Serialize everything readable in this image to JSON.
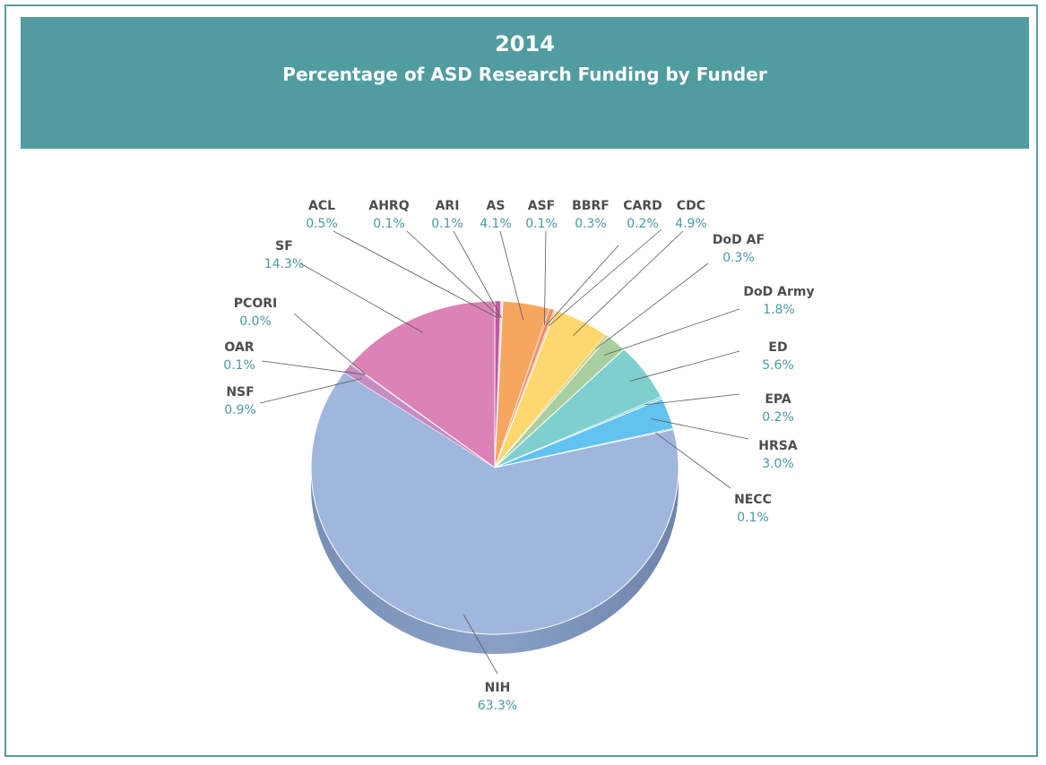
{
  "chart_data": {
    "type": "pie",
    "title": "2014",
    "subtitle": "Percentage of ASD Research Funding by Funder",
    "slices": [
      {
        "label": "ACL",
        "value_label": "0.5%",
        "value": 0.5,
        "color": "#c25a9f"
      },
      {
        "label": "AHRQ",
        "value_label": "0.1%",
        "value": 0.1,
        "color": "#f2c4b0"
      },
      {
        "label": "ARI",
        "value_label": "0.1%",
        "value": 0.1,
        "color": "#b8d6e8"
      },
      {
        "label": "AS",
        "value_label": "4.1%",
        "value": 4.1,
        "color": "#f6a65f"
      },
      {
        "label": "ASF",
        "value_label": "0.1%",
        "value": 0.1,
        "color": "#e8806a"
      },
      {
        "label": "BBRF",
        "value_label": "0.3%",
        "value": 0.3,
        "color": "#f08a5d"
      },
      {
        "label": "CARD",
        "value_label": "0.2%",
        "value": 0.2,
        "color": "#f7c9a5"
      },
      {
        "label": "CDC",
        "value_label": "4.9%",
        "value": 4.9,
        "color": "#fed86e"
      },
      {
        "label": "DoD AF",
        "value_label": "0.3%",
        "value": 0.3,
        "color": "#ccd58a"
      },
      {
        "label": "DoD Army",
        "value_label": "1.8%",
        "value": 1.8,
        "color": "#a9cfa0"
      },
      {
        "label": "ED",
        "value_label": "5.6%",
        "value": 5.6,
        "color": "#7ecfce"
      },
      {
        "label": "EPA",
        "value_label": "0.2%",
        "value": 0.2,
        "color": "#8dd6dc"
      },
      {
        "label": "HRSA",
        "value_label": "3.0%",
        "value": 3.0,
        "color": "#63c3f0"
      },
      {
        "label": "NECC",
        "value_label": "0.1%",
        "value": 0.1,
        "color": "#8fb5de"
      },
      {
        "label": "NIH",
        "value_label": "63.3%",
        "value": 63.3,
        "color": "#a0b6dc"
      },
      {
        "label": "NSF",
        "value_label": "0.9%",
        "value": 0.9,
        "color": "#c48cc0"
      },
      {
        "label": "OAR",
        "value_label": "0.1%",
        "value": 0.1,
        "color": "#b58ac0"
      },
      {
        "label": "PCORI",
        "value_label": "0.0%",
        "value": 0.0,
        "color": "#d480b8"
      },
      {
        "label": "SF",
        "value_label": "14.3%",
        "value": 14.3,
        "color": "#db82b6"
      }
    ],
    "legend": "none",
    "labels": "callout"
  }
}
